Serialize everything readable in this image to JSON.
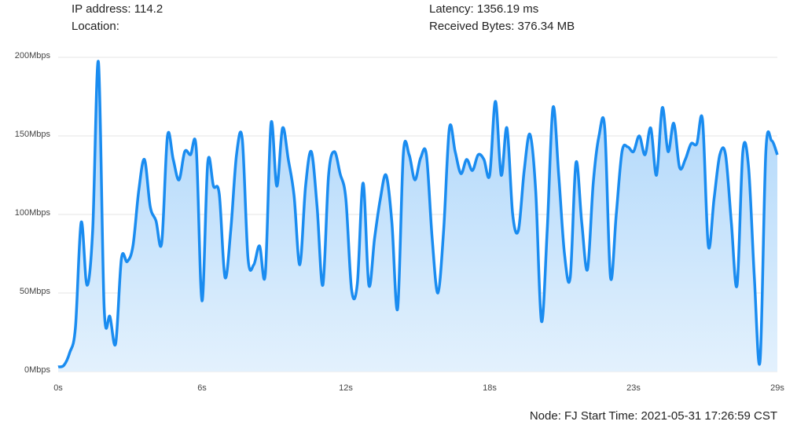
{
  "header": {
    "ip": "IP address: 114.2",
    "location": "Location:",
    "latency": "Latency: 1356.19 ms",
    "received": "Received Bytes: 376.34 MB"
  },
  "chart_data": {
    "type": "area",
    "categories": [
      "0s",
      null,
      null,
      null,
      null,
      null,
      null,
      null,
      null,
      null,
      null,
      null,
      null,
      null,
      null,
      null,
      null,
      null,
      null,
      null,
      null,
      null,
      null,
      null,
      null,
      "6s",
      null,
      null,
      null,
      null,
      null,
      null,
      null,
      null,
      null,
      null,
      null,
      null,
      null,
      null,
      null,
      null,
      null,
      null,
      null,
      null,
      null,
      null,
      null,
      null,
      "12s",
      null,
      null,
      null,
      null,
      null,
      null,
      null,
      null,
      null,
      null,
      null,
      null,
      null,
      null,
      null,
      null,
      null,
      null,
      null,
      null,
      null,
      null,
      null,
      null,
      "18s",
      null,
      null,
      null,
      null,
      null,
      null,
      null,
      null,
      null,
      null,
      null,
      null,
      null,
      null,
      null,
      null,
      null,
      null,
      null,
      null,
      null,
      null,
      null,
      null,
      "23s",
      null,
      null,
      null,
      null,
      null,
      null,
      null,
      null,
      null,
      null,
      null,
      null,
      null,
      null,
      null,
      null,
      null,
      null,
      null,
      null,
      null,
      null,
      null,
      null,
      "29s"
    ],
    "values": [
      3,
      4,
      12,
      28,
      95,
      55,
      90,
      197,
      40,
      35,
      18,
      72,
      70,
      80,
      115,
      135,
      105,
      96,
      82,
      150,
      135,
      122,
      140,
      138,
      142,
      45,
      133,
      118,
      113,
      60,
      90,
      138,
      148,
      72,
      68,
      80,
      62,
      158,
      118,
      155,
      135,
      112,
      68,
      118,
      140,
      105,
      55,
      125,
      140,
      126,
      110,
      52,
      56,
      120,
      55,
      85,
      110,
      125,
      95,
      40,
      139,
      138,
      122,
      136,
      138,
      85,
      50,
      90,
      155,
      140,
      126,
      135,
      128,
      138,
      135,
      125,
      172,
      125,
      155,
      100,
      90,
      128,
      151,
      115,
      32,
      90,
      168,
      125,
      75,
      60,
      133,
      95,
      65,
      120,
      150,
      155,
      60,
      100,
      140,
      143,
      140,
      150,
      138,
      155,
      125,
      168,
      140,
      158,
      130,
      135,
      145,
      145,
      160,
      80,
      110,
      138,
      138,
      95,
      55,
      140,
      130,
      60,
      7,
      140,
      147,
      138
    ],
    "color": "#1a8cf0",
    "ylim": [
      0,
      200
    ],
    "yticks": [
      {
        "value": 0,
        "label": "0Mbps"
      },
      {
        "value": 50,
        "label": "50Mbps"
      },
      {
        "value": 100,
        "label": "100Mbps"
      },
      {
        "value": 150,
        "label": "150Mbps"
      },
      {
        "value": 200,
        "label": "200Mbps"
      }
    ],
    "grid": true
  },
  "footer": "Node: FJ Start Time: 2021-05-31 17:26:59 CST"
}
